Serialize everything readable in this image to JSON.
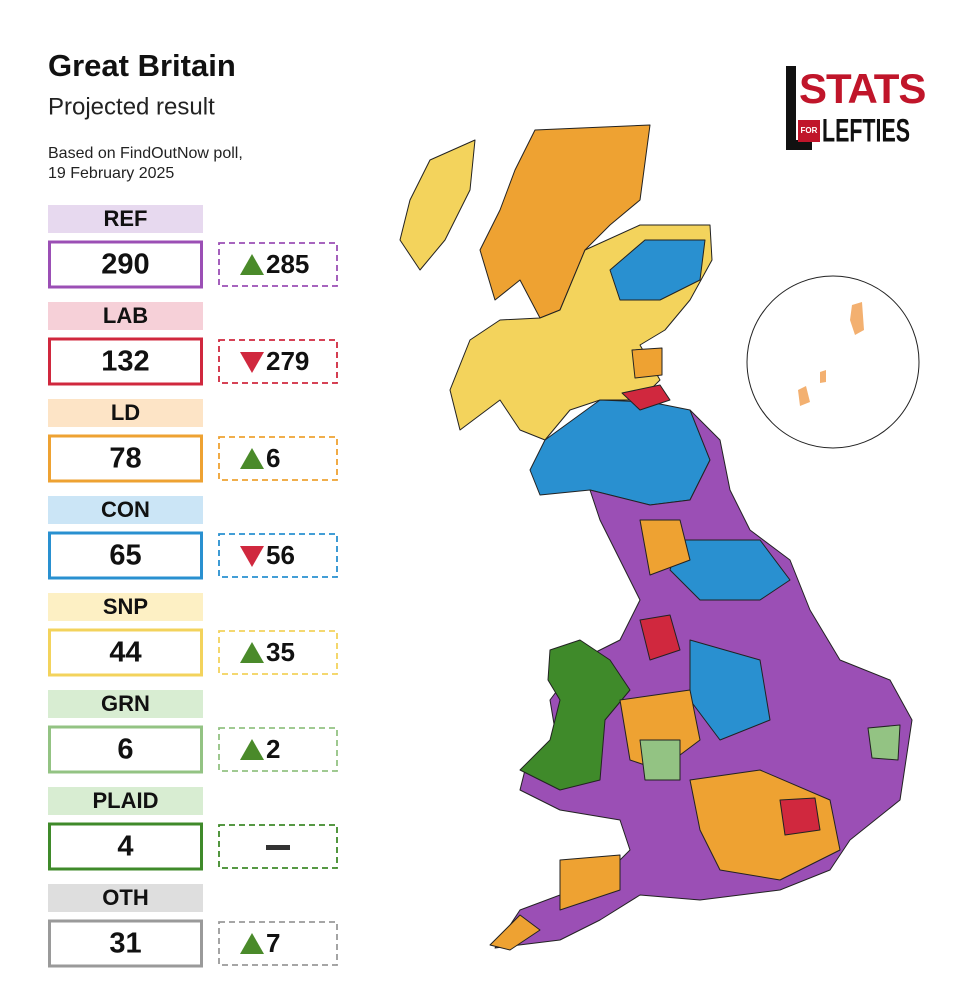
{
  "header": {
    "title": "Great Britain",
    "subtitle": "Projected result",
    "source": [
      "Based on FindOutNow poll,",
      "19 February 2025"
    ]
  },
  "logo": {
    "top": "STATS",
    "middle": "FOR",
    "bottom": "LEFTIES"
  },
  "parties": [
    {
      "name": "REF",
      "seats": 290,
      "change": 285,
      "direction": "up",
      "color": "#9b4fb5",
      "light": "#e7d9ef"
    },
    {
      "name": "LAB",
      "seats": 132,
      "change": 279,
      "direction": "down",
      "color": "#d0283e",
      "light": "#f6d0d8"
    },
    {
      "name": "LD",
      "seats": 78,
      "change": 6,
      "direction": "up",
      "color": "#eea232",
      "light": "#fde4c6"
    },
    {
      "name": "CON",
      "seats": 65,
      "change": 56,
      "direction": "down",
      "color": "#2990d0",
      "light": "#cbe5f6"
    },
    {
      "name": "SNP",
      "seats": 44,
      "change": 35,
      "direction": "up",
      "color": "#f3d35c",
      "light": "#fdf0c4"
    },
    {
      "name": "GRN",
      "seats": 6,
      "change": 2,
      "direction": "up",
      "color": "#93c383",
      "light": "#d8edd2"
    },
    {
      "name": "PLAID",
      "seats": 4,
      "change": null,
      "direction": "none",
      "color": "#3f8a2a",
      "light": "#d8edd2"
    },
    {
      "name": "OTH",
      "seats": 31,
      "change": 7,
      "direction": "up",
      "color": "#9a9a9a",
      "light": "#dedede"
    }
  ]
}
